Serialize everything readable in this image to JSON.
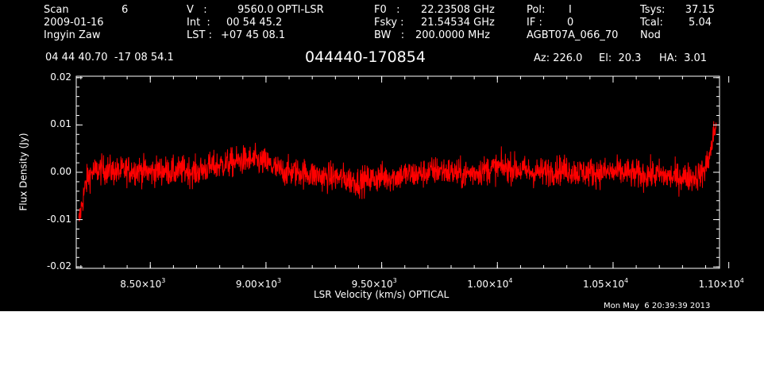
{
  "header": {
    "scan_label": "Scan",
    "scan_value": "6",
    "date": "2009-01-16",
    "observer": "Ingyin Zaw",
    "v_label": "V   :",
    "v_value": "9560.0 OPTI-LSR",
    "int_label": "Int  :",
    "int_value": "00 54 45.2",
    "lst_label": "LST :",
    "lst_value": "+07 45 08.1",
    "f0_label": "F0   :",
    "f0_value": "22.23508 GHz",
    "fsky_label": "Fsky :",
    "fsky_value": "21.54534 GHz",
    "bw_label": "BW   :",
    "bw_value": "200.0000 MHz",
    "pol_label": "Pol:",
    "pol_value": "I",
    "if_label": "IF :",
    "if_value": "0",
    "project": "AGBT07A_066_70",
    "tsys_label": "Tsys:",
    "tsys_value": "37.15",
    "tcal_label": "Tcal:",
    "tcal_value": "5.04",
    "nod": "Nod",
    "coords": "04 44 40.70  -17 08 54.1",
    "source": "044440-170854",
    "az": "Az: 226.0",
    "el": "El:  20.3",
    "ha": "HA:  3.01"
  },
  "footer": {
    "timestamp": "Mon May  6 20:39:39 2013"
  },
  "colors": {
    "background": "#000000",
    "axes": "#ffffff",
    "trace": "#ff0000"
  },
  "chart_data": {
    "type": "line",
    "xlabel": "LSR Velocity (km/s) OPTICAL",
    "ylabel": "Flux Density (Jy)",
    "xlim": [
      8180,
      10960
    ],
    "ylim": [
      -0.0203,
      0.0203
    ],
    "x_ticks": [
      {
        "value": 8500,
        "mantissa": "8.50",
        "exp": "3"
      },
      {
        "value": 9000,
        "mantissa": "9.00",
        "exp": "3"
      },
      {
        "value": 9500,
        "mantissa": "9.50",
        "exp": "3"
      },
      {
        "value": 10000,
        "mantissa": "1.00",
        "exp": "4"
      },
      {
        "value": 10500,
        "mantissa": "1.05",
        "exp": "4"
      },
      {
        "value": 11000,
        "mantissa": "1.10",
        "exp": "4"
      }
    ],
    "y_ticks": [
      {
        "value": 0.02,
        "label": "0.02"
      },
      {
        "value": 0.01,
        "label": "0.01"
      },
      {
        "value": 0.0,
        "label": "0.00"
      },
      {
        "value": -0.01,
        "label": "-0.01"
      },
      {
        "value": -0.02,
        "label": "-0.02"
      }
    ],
    "series": [
      {
        "color": "#ff0000",
        "x": [
          8190,
          8200,
          8215,
          8230,
          8250,
          8280,
          8320,
          8360,
          8400,
          8450,
          8500,
          8550,
          8600,
          8650,
          8700,
          8750,
          8800,
          8850,
          8900,
          8950,
          9000,
          9050,
          9100,
          9150,
          9200,
          9250,
          9300,
          9350,
          9400,
          9450,
          9500,
          9550,
          9600,
          9650,
          9700,
          9750,
          9800,
          9850,
          9900,
          9950,
          10000,
          10050,
          10100,
          10150,
          10200,
          10250,
          10300,
          10350,
          10400,
          10450,
          10500,
          10550,
          10600,
          10650,
          10700,
          10750,
          10800,
          10850,
          10880,
          10900,
          10920,
          10935,
          10945
        ],
        "values": [
          -0.011,
          -0.008,
          -0.004,
          -0.001,
          0.0,
          0.0005,
          0.0005,
          0.0,
          0.0005,
          0.0005,
          0.0,
          0.0005,
          0.0,
          0.0005,
          0.0,
          0.001,
          0.0015,
          0.002,
          0.0025,
          0.0025,
          0.002,
          0.0005,
          0.0,
          0.0,
          -0.0005,
          -0.001,
          -0.001,
          -0.0015,
          -0.002,
          -0.0015,
          -0.001,
          -0.001,
          -0.0005,
          -0.0005,
          0.0,
          0.0005,
          0.0,
          -0.0005,
          0.0,
          0.0005,
          0.001,
          0.001,
          0.0005,
          0.0,
          0.0,
          0.0005,
          0.0005,
          0.0,
          0.0,
          0.0,
          0.0,
          0.0,
          -0.0005,
          -0.0005,
          -0.0005,
          -0.001,
          -0.001,
          -0.001,
          -0.0005,
          0.001,
          0.004,
          0.008,
          0.01
        ]
      }
    ]
  }
}
